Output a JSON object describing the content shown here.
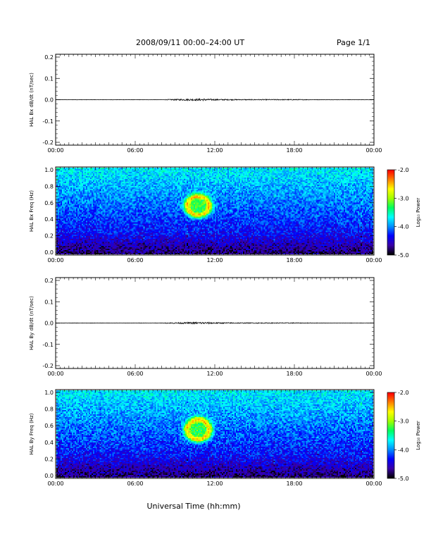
{
  "header": {
    "title": "2008/09/11  00:00–24:00 UT",
    "page": "Page 1/1"
  },
  "footer": {
    "xlabel": "Universal Time (hh:mm)"
  },
  "colorbar": {
    "label": "Log₁₀ Power",
    "ticks": [
      "-2.0",
      "-3.0",
      "-4.0",
      "-5.0"
    ],
    "range": [
      -5.0,
      -2.0
    ],
    "colors": [
      "#000000",
      "#3a00a8",
      "#0000ff",
      "#0090ff",
      "#00ffff",
      "#00ff60",
      "#a0ff00",
      "#ffff00",
      "#ff8000",
      "#ff0000"
    ]
  },
  "chart_data": [
    {
      "type": "line",
      "name": "panel-bx-dbdt",
      "ylabel": "HAL Bx dB/dt (nT/sec)",
      "ylim": [
        -0.2,
        0.2
      ],
      "yticks": [
        "0.2",
        "0.1",
        "0.0",
        "-0.1",
        "-0.2"
      ],
      "xticks": [
        "00:00",
        "06:00",
        "12:00",
        "18:00",
        "00:00"
      ],
      "xlim": [
        0,
        24
      ],
      "series": [
        {
          "x": [
            0,
            2,
            4,
            6,
            8,
            9,
            10,
            11,
            12,
            14,
            16,
            18,
            20,
            22,
            24
          ],
          "y": [
            0.0,
            0.0,
            0.0,
            0.0,
            0.0,
            0.002,
            0.003,
            0.004,
            0.002,
            0.001,
            0.001,
            0.001,
            0.0,
            0.0,
            0.0
          ]
        }
      ]
    },
    {
      "type": "heatmap",
      "name": "panel-bx-freq",
      "ylabel": "HAL Bx Freq (Hz)",
      "ylim": [
        0.0,
        1.0
      ],
      "yticks": [
        "1.0",
        "0.8",
        "0.6",
        "0.4",
        "0.2",
        "0.0"
      ],
      "xticks": [
        "00:00",
        "06:00",
        "12:00",
        "18:00",
        "00:00"
      ],
      "xlim": [
        0,
        24
      ],
      "zlim": [
        -5.0,
        -2.0
      ],
      "features": [
        {
          "t_start_hr": 9.5,
          "t_end_hr": 12.0,
          "f_low_hz": 0.4,
          "f_high_hz": 0.72,
          "log_power": -2.3
        }
      ]
    },
    {
      "type": "line",
      "name": "panel-by-dbdt",
      "ylabel": "HAL By dB/dt (nT/sec)",
      "ylim": [
        -0.2,
        0.2
      ],
      "yticks": [
        "0.2",
        "0.1",
        "0.0",
        "-0.1",
        "-0.2"
      ],
      "xticks": [
        "00:00",
        "06:00",
        "12:00",
        "18:00",
        "00:00"
      ],
      "xlim": [
        0,
        24
      ],
      "series": [
        {
          "x": [
            0,
            2,
            4,
            6,
            8,
            9,
            10,
            11,
            12,
            14,
            16,
            18,
            20,
            22,
            24
          ],
          "y": [
            0.0,
            0.0,
            0.0,
            0.0,
            0.0,
            0.002,
            0.003,
            0.004,
            0.002,
            0.001,
            0.001,
            0.001,
            0.0,
            0.0,
            0.0
          ]
        }
      ]
    },
    {
      "type": "heatmap",
      "name": "panel-by-freq",
      "ylabel": "HAL By Freq (Hz)",
      "ylim": [
        0.0,
        1.0
      ],
      "yticks": [
        "1.0",
        "0.8",
        "0.6",
        "0.4",
        "0.2",
        "0.0"
      ],
      "xticks": [
        "00:00",
        "06:00",
        "12:00",
        "18:00",
        "00:00"
      ],
      "xlim": [
        0,
        24
      ],
      "zlim": [
        -5.0,
        -2.0
      ],
      "features": [
        {
          "t_start_hr": 9.5,
          "t_end_hr": 12.0,
          "f_low_hz": 0.38,
          "f_high_hz": 0.72,
          "log_power": -2.3
        }
      ]
    }
  ]
}
